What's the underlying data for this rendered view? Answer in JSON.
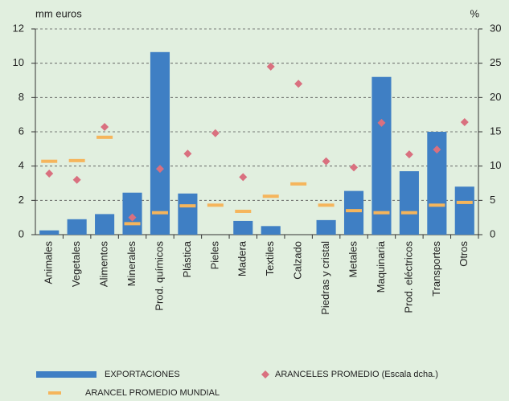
{
  "chart_data": {
    "type": "bar",
    "y_label": "mm euros",
    "y2_label": "%",
    "categories": [
      "Animales",
      "Vegetales",
      "Alimentos",
      "Minerales",
      "Prod. químicos",
      "Plástica",
      "Pieles",
      "Madera",
      "Textiles",
      "Calzado",
      "Piedras y cristal",
      "Metales",
      "Maquinaria",
      "Prod. eléctricos",
      "Transportes",
      "Otros"
    ],
    "series": [
      {
        "name": "EXPORTACIONES",
        "style": "bar",
        "color": "#3f7fc4",
        "values": [
          0.25,
          0.9,
          1.2,
          2.45,
          10.65,
          2.4,
          0,
          0.8,
          0.5,
          0,
          0.85,
          2.55,
          9.2,
          3.7,
          6.0,
          2.8
        ]
      },
      {
        "name": "ARANCELES PROMEDIO (Escala dcha.)",
        "style": "diamond",
        "axis": "y2",
        "color": "#d9707f",
        "values": [
          8.9,
          8.0,
          15.7,
          2.5,
          9.6,
          11.8,
          14.8,
          8.4,
          24.5,
          22.0,
          10.7,
          9.8,
          16.3,
          11.7,
          12.4,
          16.4
        ]
      },
      {
        "name": "ARANCEL PROMEDIO MUNDIAL",
        "style": "dash",
        "axis": "y2",
        "color": "#f5b55c",
        "values": [
          10.7,
          10.8,
          14.2,
          1.6,
          3.2,
          4.2,
          4.3,
          3.4,
          5.6,
          7.4,
          4.3,
          3.5,
          3.2,
          3.2,
          4.3,
          4.7
        ]
      }
    ],
    "ylim": [
      0,
      12
    ],
    "yticks": [
      0,
      2,
      4,
      6,
      8,
      10,
      12
    ],
    "y2lim": [
      0,
      30
    ],
    "y2ticks": [
      0,
      5,
      10,
      15,
      20,
      25,
      30
    ],
    "grid": true
  }
}
